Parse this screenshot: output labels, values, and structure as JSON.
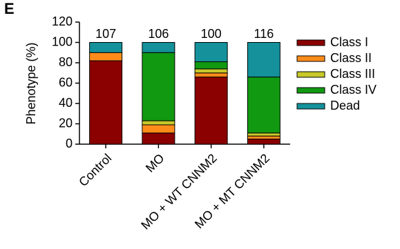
{
  "panel_label": "E",
  "chart_data": {
    "type": "stacked_bar",
    "y_label": "Phenotype (%)",
    "categories": [
      "Control",
      "MO",
      "MO + WT CNNM2",
      "MO + MT CNNM2"
    ],
    "counts": [
      107,
      106,
      100,
      116
    ],
    "series": [
      {
        "name": "Class I",
        "color": "#8b0000",
        "values": [
          82,
          11,
          66,
          5
        ]
      },
      {
        "name": "Class II",
        "color": "#ff8c1a",
        "values": [
          8,
          8,
          4,
          3
        ]
      },
      {
        "name": "Class III",
        "color": "#c8c82a",
        "values": [
          0,
          4,
          4,
          3
        ]
      },
      {
        "name": "Class IV",
        "color": "#129912",
        "values": [
          0,
          67,
          7,
          55
        ]
      },
      {
        "name": "Dead",
        "color": "#14919b",
        "values": [
          10,
          10,
          19,
          34
        ]
      }
    ],
    "ylim": [
      0,
      120
    ],
    "yticks": [
      0,
      20,
      40,
      60,
      80,
      100,
      120
    ]
  }
}
